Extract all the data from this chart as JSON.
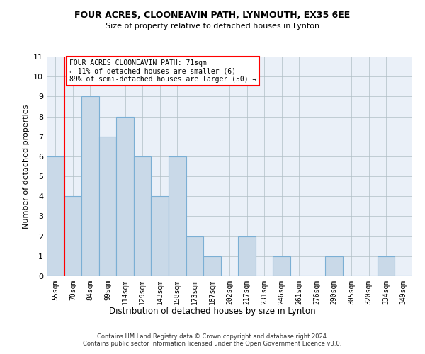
{
  "title": "FOUR ACRES, CLOONEAVIN PATH, LYNMOUTH, EX35 6EE",
  "subtitle": "Size of property relative to detached houses in Lynton",
  "xlabel": "Distribution of detached houses by size in Lynton",
  "ylabel": "Number of detached properties",
  "bar_labels": [
    "55sqm",
    "70sqm",
    "84sqm",
    "99sqm",
    "114sqm",
    "129sqm",
    "143sqm",
    "158sqm",
    "173sqm",
    "187sqm",
    "202sqm",
    "217sqm",
    "231sqm",
    "246sqm",
    "261sqm",
    "276sqm",
    "290sqm",
    "305sqm",
    "320sqm",
    "334sqm",
    "349sqm"
  ],
  "bar_heights": [
    6,
    4,
    9,
    7,
    8,
    6,
    4,
    6,
    2,
    1,
    0,
    2,
    0,
    1,
    0,
    0,
    1,
    0,
    0,
    1,
    0
  ],
  "bar_color": "#c9d9e8",
  "bar_edge_color": "#7bafd4",
  "ylim": [
    0,
    11
  ],
  "yticks": [
    0,
    1,
    2,
    3,
    4,
    5,
    6,
    7,
    8,
    9,
    10,
    11
  ],
  "red_line_index": 1,
  "annotation_text": "FOUR ACRES CLOONEAVIN PATH: 71sqm\n← 11% of detached houses are smaller (6)\n89% of semi-detached houses are larger (50) →",
  "footer_text": "Contains HM Land Registry data © Crown copyright and database right 2024.\nContains public sector information licensed under the Open Government Licence v3.0.",
  "bg_color": "#ffffff",
  "ax_bg_color": "#eaf0f8",
  "grid_color": "#b0bec5"
}
